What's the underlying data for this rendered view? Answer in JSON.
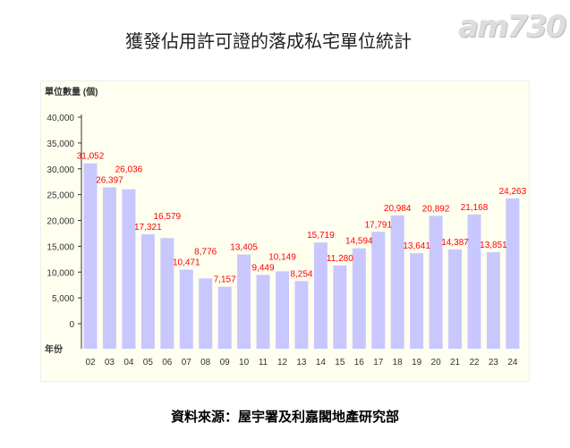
{
  "chart_data": {
    "type": "bar",
    "title": "獲發佔用許可證的落成私宅單位統計",
    "ylabel": "單位數量 (個)",
    "xlabel": "年份",
    "categories": [
      "02",
      "03",
      "04",
      "05",
      "06",
      "07",
      "08",
      "09",
      "10",
      "11",
      "12",
      "13",
      "14",
      "15",
      "16",
      "17",
      "18",
      "19",
      "20",
      "21",
      "22",
      "23",
      "24"
    ],
    "values": [
      31052,
      26397,
      26036,
      17321,
      16579,
      10471,
      8776,
      7157,
      13405,
      9449,
      10149,
      8254,
      15719,
      11280,
      14594,
      17791,
      20984,
      13641,
      20892,
      14387,
      21168,
      13851,
      24263
    ],
    "labels": [
      "31,052",
      "26,397",
      "26,036",
      "17,321",
      "16,579",
      "10,471",
      "8,776",
      "7,157",
      "13,405",
      "9,449",
      "10,149",
      "8,254",
      "15,719",
      "11,280",
      "14,594",
      "17,791",
      "20,984",
      "13,641",
      "20,892",
      "14,387",
      "21,168",
      "13,851",
      "24,263"
    ],
    "yticks": [
      "0",
      "5,000",
      "10,000",
      "15,000",
      "20,000",
      "25,000",
      "30,000",
      "35,000",
      "40,000"
    ],
    "ylim": [
      0,
      40000
    ],
    "bar_color": "#c8c8ff",
    "label_color": "#ff0000",
    "grid": false
  },
  "logo": "am730",
  "source": "資料來源：屋宇署及利嘉閣地產研究部"
}
